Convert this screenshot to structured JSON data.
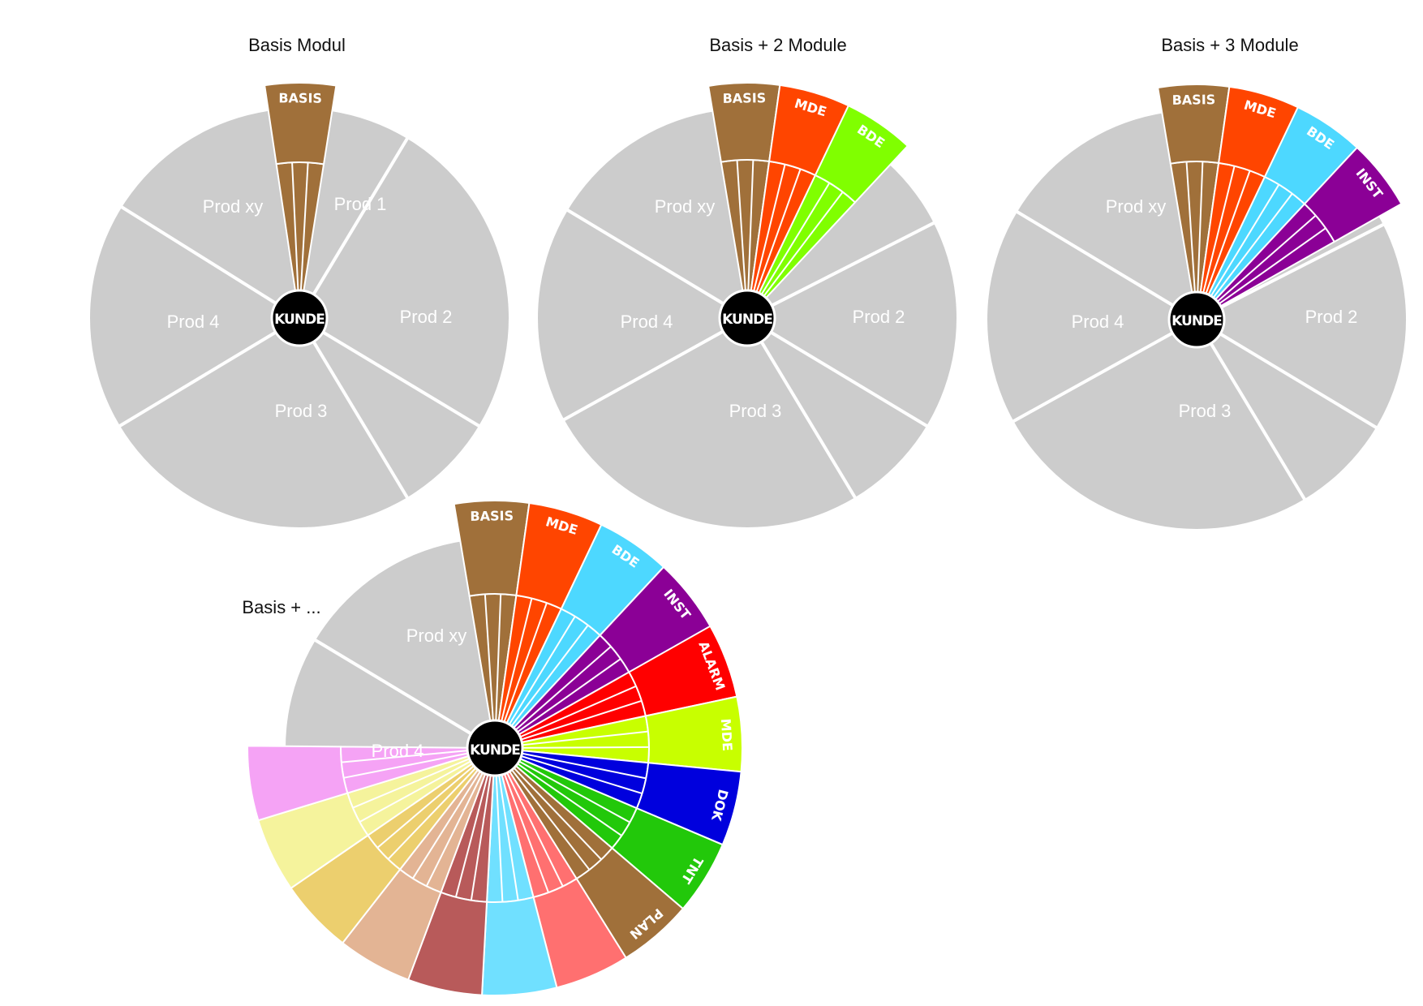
{
  "colors": {
    "background": "#ffffff",
    "wheel_gray": "#cccccc",
    "separator": "#ffffff",
    "hub": "#000000"
  },
  "wheels": [
    {
      "title": "Basis Modul",
      "hub_label": "KUNDE",
      "products": [
        "Prod xy",
        "Prod 1",
        "Prod 2",
        "Prod 3",
        "Prod 4"
      ],
      "modules": [
        {
          "label": "BASIS",
          "color": "#a0703a"
        }
      ]
    },
    {
      "title": "Basis + 2 Module",
      "hub_label": "KUNDE",
      "products": [
        "Prod xy",
        "Prod 2",
        "Prod 3",
        "Prod 4"
      ],
      "modules": [
        {
          "label": "BASIS",
          "color": "#a0703a"
        },
        {
          "label": "MDE",
          "color": "#ff4500"
        },
        {
          "label": "BDE",
          "color": "#80ff00"
        }
      ]
    },
    {
      "title": "Basis + 3 Module",
      "hub_label": "KUNDE",
      "products": [
        "Prod xy",
        "Prod 2",
        "Prod 3",
        "Prod 4"
      ],
      "modules": [
        {
          "label": "BASIS",
          "color": "#a0703a"
        },
        {
          "label": "MDE",
          "color": "#ff4500"
        },
        {
          "label": "BDE",
          "color": "#4dd8ff"
        },
        {
          "label": "INST",
          "color": "#8b0096"
        }
      ]
    },
    {
      "title": "Basis + ...",
      "hub_label": "KUNDE",
      "products": [
        "Prod xy",
        "Prod 4"
      ],
      "modules": [
        {
          "label": "BASIS",
          "color": "#a0703a"
        },
        {
          "label": "MDE",
          "color": "#ff4500"
        },
        {
          "label": "BDE",
          "color": "#4dd8ff"
        },
        {
          "label": "INST",
          "color": "#8b0096"
        },
        {
          "label": "ALARM",
          "color": "#ff0000"
        },
        {
          "label": "MDE",
          "color": "#c8ff00"
        },
        {
          "label": "DOK",
          "color": "#0000dd"
        },
        {
          "label": "TNT",
          "color": "#22c80a"
        },
        {
          "label": "PLAN",
          "color": "#a0703a"
        },
        {
          "label": "",
          "color": "#ff7070"
        },
        {
          "label": "",
          "color": "#70e0ff"
        },
        {
          "label": "",
          "color": "#b85a5a"
        },
        {
          "label": "",
          "color": "#e3b494"
        },
        {
          "label": "",
          "color": "#eccf6e"
        },
        {
          "label": "",
          "color": "#f5f39c"
        },
        {
          "label": "",
          "color": "#f5a3f5"
        }
      ]
    }
  ]
}
